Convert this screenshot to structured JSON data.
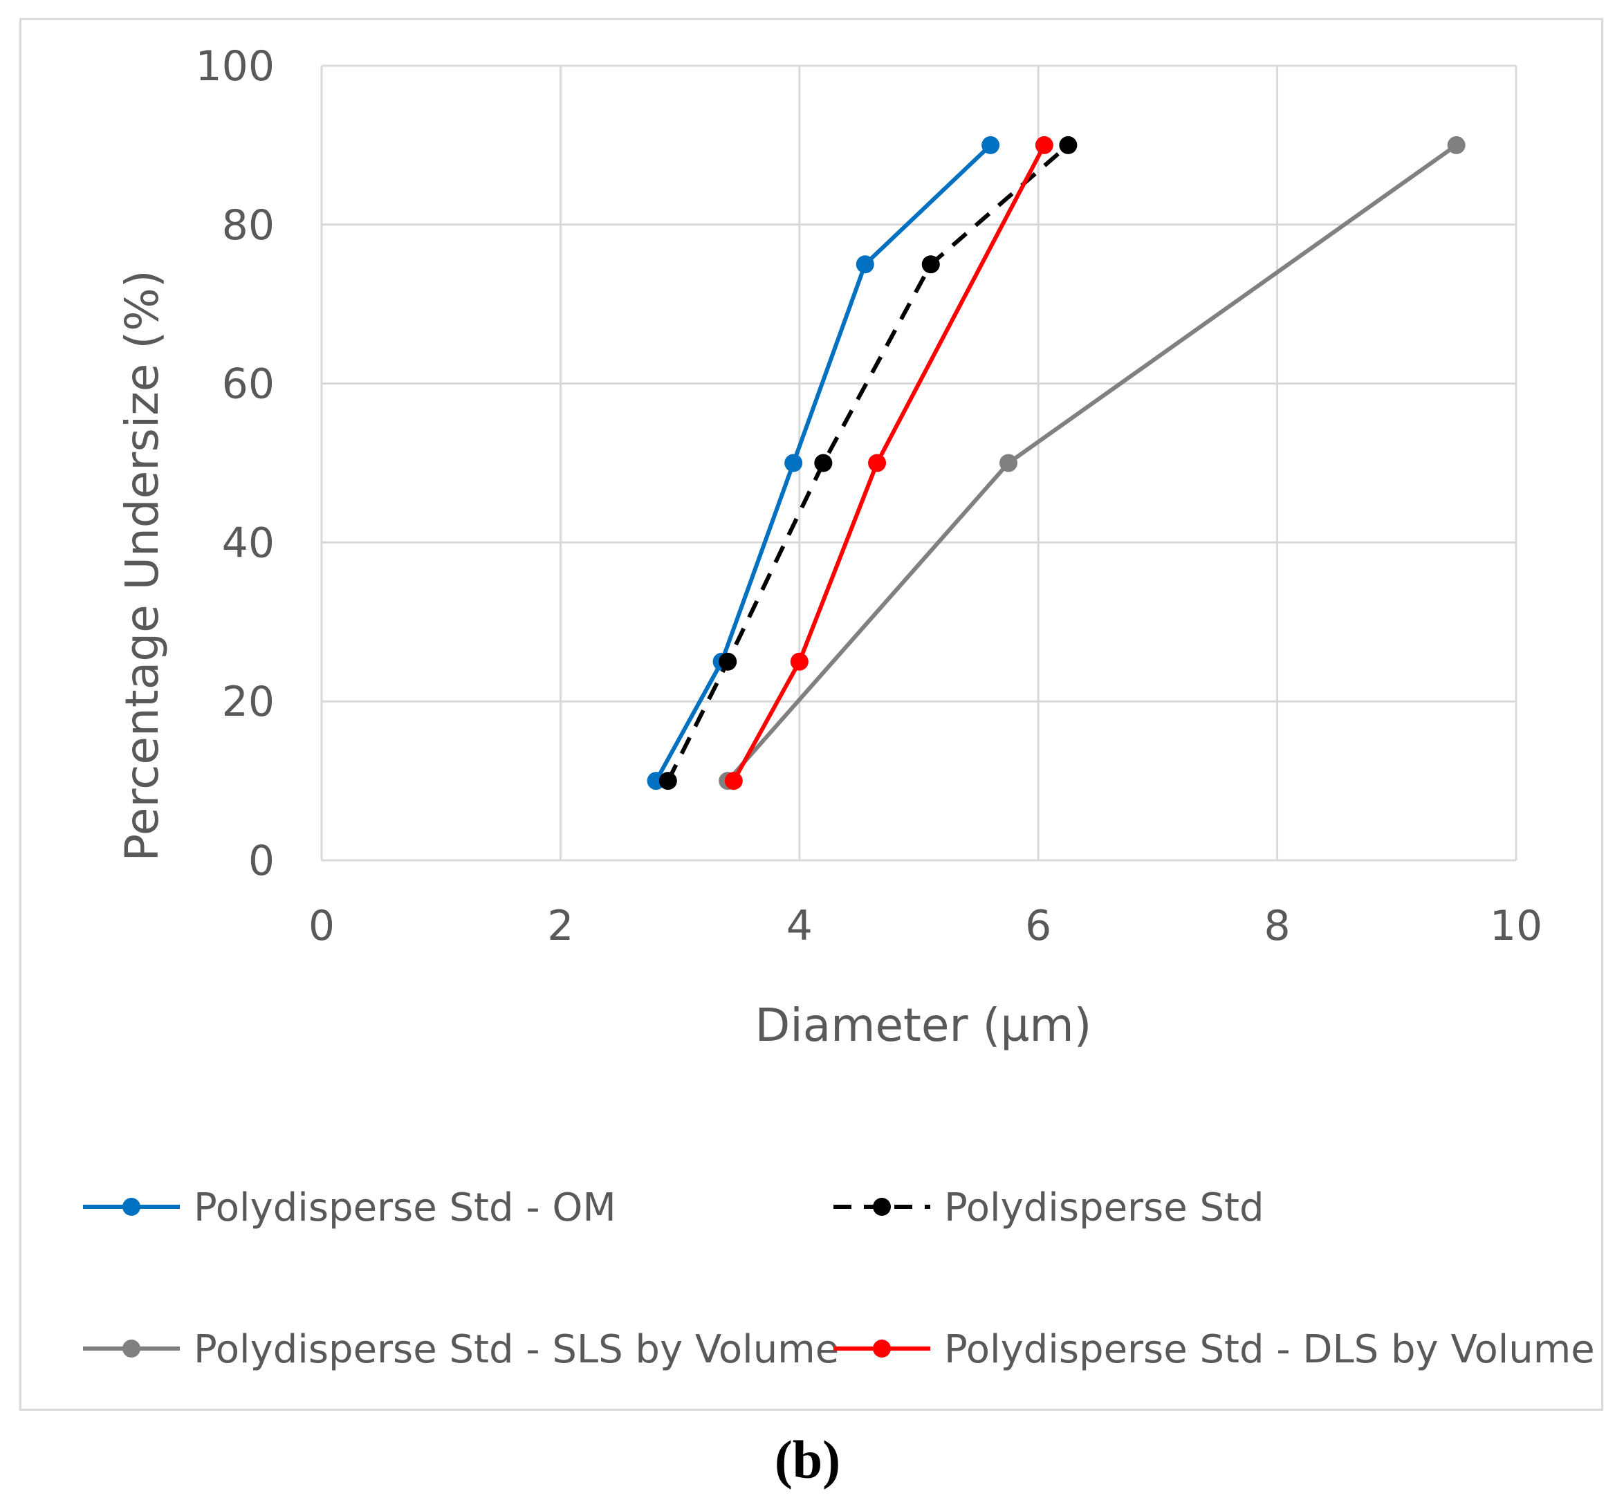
{
  "panel_label": "(b)",
  "chart_data": {
    "type": "line",
    "title": "",
    "xlabel": "Diameter (µm)",
    "ylabel": "Percentage Undersize (%)",
    "xlim": [
      0,
      10
    ],
    "ylim": [
      0,
      100
    ],
    "x_ticks": [
      "0",
      "2",
      "4",
      "6",
      "8",
      "10"
    ],
    "y_ticks": [
      "0",
      "20",
      "40",
      "60",
      "80",
      "100"
    ],
    "grid": true,
    "legend_position": "bottom",
    "series": [
      {
        "name": "Polydisperse Std - OM",
        "color": "#0070C0",
        "dashed": false,
        "points": [
          [
            2.8,
            10
          ],
          [
            3.35,
            25
          ],
          [
            3.95,
            50
          ],
          [
            4.55,
            75
          ],
          [
            5.6,
            90
          ]
        ]
      },
      {
        "name": "Polydisperse Std",
        "color": "#000000",
        "dashed": true,
        "points": [
          [
            2.9,
            10
          ],
          [
            3.4,
            25
          ],
          [
            4.2,
            50
          ],
          [
            5.1,
            75
          ],
          [
            6.25,
            90
          ]
        ]
      },
      {
        "name": "Polydisperse Std - SLS by Volume",
        "color": "#808080",
        "dashed": false,
        "points": [
          [
            3.4,
            10
          ],
          [
            5.75,
            50
          ],
          [
            9.5,
            90
          ]
        ]
      },
      {
        "name": "Polydisperse Std - DLS by Volume",
        "color": "#FF0000",
        "dashed": false,
        "points": [
          [
            3.45,
            10
          ],
          [
            4.0,
            25
          ],
          [
            4.65,
            50
          ],
          [
            6.05,
            90
          ]
        ]
      }
    ]
  }
}
